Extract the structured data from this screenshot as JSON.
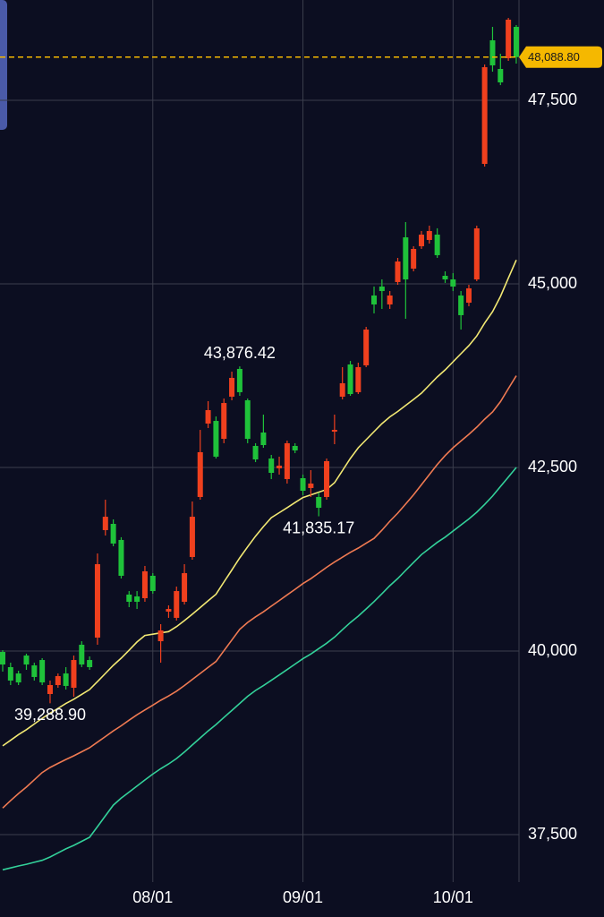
{
  "chart_data": {
    "type": "candlestick",
    "background": "#0c0e21",
    "grid_color": "#3b3e4d",
    "up_color": "#f0401e",
    "down_color": "#1fc23a",
    "ylim": [
      36854,
      48866
    ],
    "yticks": [
      {
        "value": 37500,
        "label": "37,500"
      },
      {
        "value": 40000,
        "label": "40,000"
      },
      {
        "value": 42500,
        "label": "42,500"
      },
      {
        "value": 45000,
        "label": "45,000"
      },
      {
        "value": 47500,
        "label": "47,500"
      }
    ],
    "categories": [
      null,
      null,
      null,
      null,
      null,
      null,
      null,
      null,
      null,
      null,
      null,
      null,
      null,
      null,
      null,
      null,
      null,
      null,
      null,
      "08/01",
      null,
      null,
      null,
      null,
      null,
      null,
      null,
      null,
      null,
      null,
      null,
      null,
      null,
      null,
      null,
      null,
      null,
      null,
      "09/01",
      null,
      null,
      null,
      null,
      null,
      null,
      null,
      null,
      null,
      null,
      null,
      null,
      null,
      null,
      null,
      null,
      null,
      null,
      "10/01",
      null,
      null,
      null,
      null,
      null,
      null,
      null,
      null
    ],
    "open": [
      39988,
      39781,
      39695,
      39939,
      39805,
      39878,
      39415,
      39537,
      39695,
      39500,
      40086,
      39878,
      40183,
      41647,
      41732,
      41513,
      40769,
      40744,
      40720,
      41025,
      40134,
      40537,
      40452,
      40671,
      41281,
      42098,
      43098,
      43134,
      42890,
      43464,
      43842,
      43415,
      42793,
      42976,
      42622,
      42488,
      42342,
      42793,
      42354,
      42220,
      42098,
      42098,
      42988,
      43464,
      43903,
      43525,
      43891,
      44842,
      44964,
      44720,
      45025,
      45634,
      45208,
      45513,
      45598,
      45671,
      45110,
      45061,
      44842,
      44744,
      45061,
      46634,
      48317,
      47927,
      48073,
      48500
    ],
    "high": [
      40012,
      39842,
      39732,
      39964,
      39842,
      39903,
      39598,
      39695,
      39781,
      39939,
      40134,
      39927,
      41329,
      42061,
      41793,
      41550,
      40817,
      40817,
      41159,
      41061,
      40366,
      40622,
      40878,
      41183,
      42037,
      43012,
      43403,
      43195,
      43439,
      43805,
      43876.42,
      43439,
      42830,
      43220,
      42671,
      42647,
      42866,
      42830,
      42403,
      42464,
      42159,
      42622,
      43220,
      43866,
      43951,
      43927,
      44415,
      44964,
      45061,
      44903,
      45354,
      45842,
      45513,
      45720,
      45793,
      45757,
      45171,
      45147,
      44903,
      44988,
      45793,
      47988,
      48500,
      48134,
      48622,
      48525
    ],
    "low": [
      39720,
      39537,
      39537,
      39744,
      39598,
      39537,
      39288.9,
      39500,
      39476,
      39378,
      39781,
      39744,
      40086,
      41573,
      41427,
      40988,
      40598,
      40573,
      40671,
      40781,
      39842,
      40452,
      40415,
      40634,
      41244,
      42061,
      43037,
      42622,
      42830,
      43415,
      43476,
      42830,
      42573,
      42768,
      42342,
      42403,
      42281,
      42695,
      42122,
      42098,
      41835.17,
      42061,
      42817,
      43427,
      43476,
      43500,
      43866,
      44598,
      44659,
      44659,
      44988,
      44525,
      45171,
      45476,
      45549,
      45354,
      45013,
      44903,
      44378,
      44695,
      45037,
      46598,
      47890,
      47707,
      48037,
      48000
    ],
    "close": [
      39817,
      39598,
      39573,
      39817,
      39647,
      39573,
      39537,
      39659,
      39525,
      39878,
      39817,
      39781,
      41183,
      41829,
      41464,
      41025,
      40671,
      40671,
      41086,
      40817,
      40281,
      40573,
      40817,
      41061,
      41829,
      42708,
      43281,
      42647,
      43378,
      43720,
      43525,
      42890,
      42610,
      42805,
      42427,
      42525,
      42830,
      42732,
      42183,
      42281,
      41951,
      42586,
      43012,
      43647,
      43500,
      43866,
      44378,
      44720,
      44903,
      44842,
      45305,
      45061,
      45476,
      45671,
      45720,
      45391,
      45061,
      44964,
      44574,
      44939,
      45756,
      47951,
      47976,
      47744,
      48598,
      48088.8
    ],
    "lines": [
      {
        "color": "#f2e873",
        "values": [
          38709,
          38785,
          38862,
          38930,
          39007,
          39084,
          39154,
          39220,
          39286,
          39344,
          39410,
          39476,
          39586,
          39696,
          39805,
          39903,
          40013,
          40123,
          40212,
          40230,
          40248,
          40265,
          40333,
          40415,
          40502,
          40593,
          40685,
          40774,
          40939,
          41104,
          41268,
          41419,
          41565,
          41695,
          41816,
          41884,
          41953,
          42022,
          42090,
          42127,
          42164,
          42200,
          42293,
          42457,
          42622,
          42768,
          42878,
          42988,
          43097,
          43189,
          43262,
          43344,
          43427,
          43512,
          43622,
          43732,
          43829,
          43939,
          44049,
          44159,
          44290,
          44466,
          44622,
          44830,
          45078,
          45326
        ]
      },
      {
        "color": "#ef7a52",
        "values": [
          37863,
          37962,
          38060,
          38148,
          38247,
          38345,
          38415,
          38470,
          38524,
          38573,
          38628,
          38683,
          38760,
          38836,
          38913,
          38982,
          39059,
          39132,
          39198,
          39264,
          39330,
          39388,
          39454,
          39531,
          39613,
          39696,
          39778,
          39858,
          40004,
          40150,
          40296,
          40389,
          40466,
          40534,
          40611,
          40688,
          40765,
          40841,
          40918,
          40986,
          41063,
          41140,
          41212,
          41278,
          41344,
          41403,
          41469,
          41534,
          41645,
          41768,
          41878,
          42002,
          42128,
          42266,
          42403,
          42540,
          42662,
          42769,
          42860,
          42951,
          43049,
          43158,
          43256,
          43396,
          43573,
          43749
        ]
      },
      {
        "color": "#33d19a",
        "values": [
          37021,
          37047,
          37074,
          37097,
          37124,
          37150,
          37196,
          37251,
          37306,
          37354,
          37409,
          37464,
          37610,
          37756,
          37902,
          37997,
          38079,
          38161,
          38244,
          38325,
          38398,
          38463,
          38537,
          38625,
          38721,
          38817,
          38913,
          38999,
          39095,
          39191,
          39287,
          39383,
          39464,
          39529,
          39602,
          39675,
          39748,
          39822,
          39895,
          39960,
          40033,
          40106,
          40191,
          40290,
          40388,
          40476,
          40574,
          40673,
          40780,
          40890,
          40988,
          41098,
          41207,
          41314,
          41397,
          41479,
          41552,
          41634,
          41716,
          41799,
          41890,
          41996,
          42111,
          42241,
          42370,
          42500
        ]
      }
    ],
    "current_price": {
      "value": 48088.8,
      "label": "48,088.80",
      "color": "#f5b800"
    },
    "annotations": [
      {
        "value": 43876.42,
        "label": "43,876.42"
      },
      {
        "value": 41835.17,
        "label": "41,835.17"
      },
      {
        "value": 39288.9,
        "label": "39,288.90"
      }
    ]
  }
}
